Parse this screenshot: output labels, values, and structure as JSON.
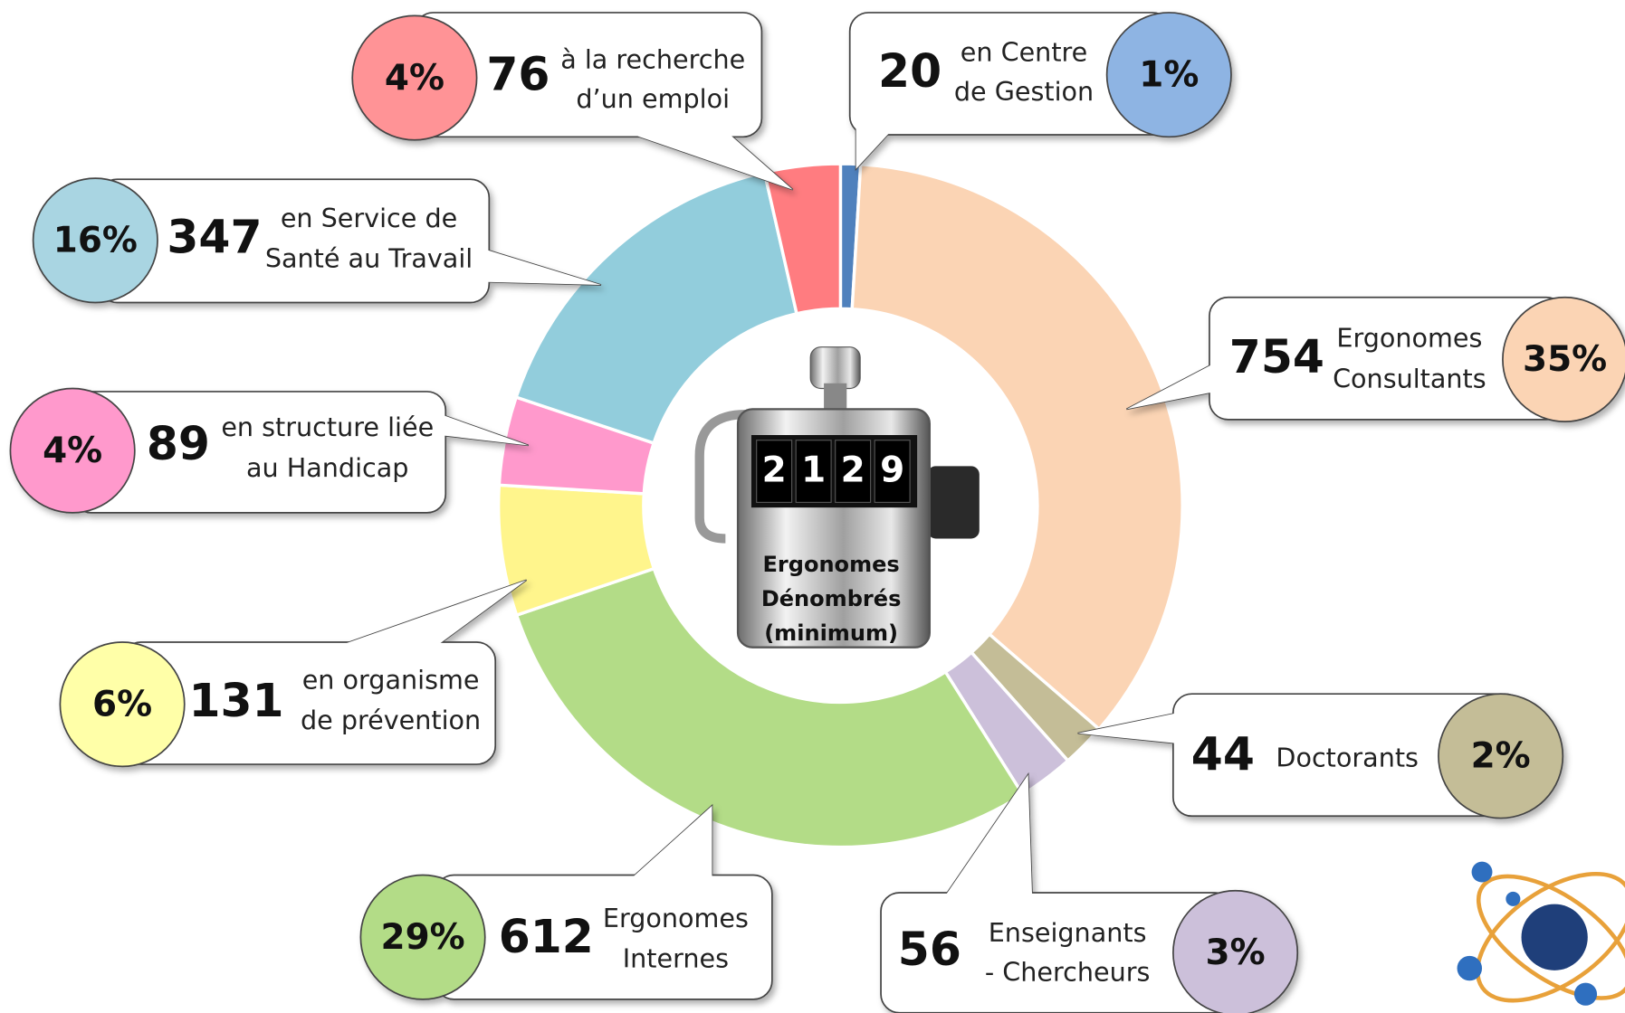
{
  "chart_data": {
    "type": "donut",
    "counter_digits": [
      "2",
      "1",
      "2",
      "9"
    ],
    "center_lines": [
      "Ergonomes",
      "Dénombrés",
      "(minimum)"
    ],
    "categories": [
      [
        "en Centre",
        "de Gestion"
      ],
      [
        "Ergonomes",
        "Consultants"
      ],
      [
        "Doctorants"
      ],
      [
        "Enseignants",
        "- Chercheurs"
      ],
      [
        "Ergonomes",
        "Internes"
      ],
      [
        "en organisme",
        "de prévention"
      ],
      [
        "en structure liée",
        "au Handicap"
      ],
      [
        "en Service de",
        "Santé au Travail"
      ],
      [
        "à la recherche",
        "d’un emploi"
      ]
    ],
    "values": [
      20,
      754,
      44,
      56,
      612,
      131,
      89,
      347,
      76
    ],
    "percent_labels": [
      "1%",
      "35%",
      "2%",
      "3%",
      "29%",
      "6%",
      "4%",
      "16%",
      "4%"
    ],
    "colors": [
      "#4f81bd",
      "#fbd4b4",
      "#c4bd97",
      "#ccc0da",
      "#b3dc87",
      "#fff58c",
      "#ff99cc",
      "#92cddc",
      "#ff7c80"
    ],
    "badge_colors": [
      "#8eb4e3",
      "#fbd4b4",
      "#c4bd97",
      "#ccc0da",
      "#b3dc87",
      "#ffffa8",
      "#ff99cc",
      "#a9d5e2",
      "#ff9396"
    ]
  }
}
